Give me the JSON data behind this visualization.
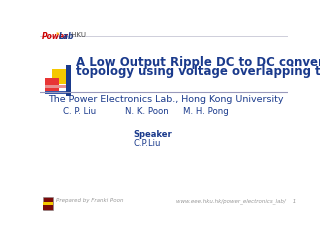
{
  "title_line1": "A Low Output Ripple DC to DC converter",
  "title_line2": "topology using voltage overlapping technique",
  "subtitle": "The Power Electronics Lab., Hong Kong University",
  "author1": "C. P. Liu",
  "author2": "N. K. Poon",
  "author3": "M. H. Pong",
  "speaker_label": "Speaker",
  "speaker_name": "C.P.Liu",
  "footer_left": "Prepared by Franki Poon",
  "footer_right": "www.eee.hku.hk/power_electronics_lab/    1",
  "title_color": "#1a3a8c",
  "subtitle_color": "#1a3a8c",
  "author_color": "#1a3a8c",
  "speaker_color": "#1a3a8c",
  "footer_color": "#999999",
  "logo_power_color": "#cc0000",
  "logo_lab_color": "#1a3a8c",
  "logo_hku_color": "#444444"
}
